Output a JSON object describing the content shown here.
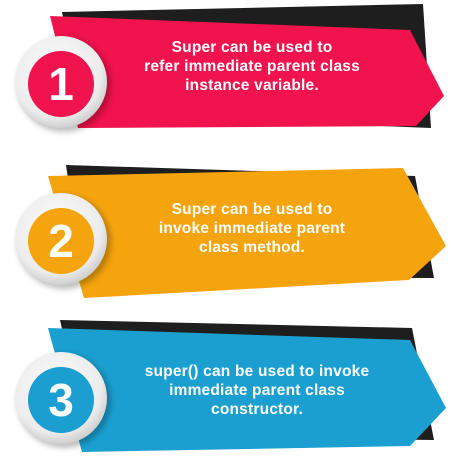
{
  "colors": {
    "banner_1": "#f0134d",
    "banner_2": "#f5a40d",
    "banner_3": "#1a9fd0",
    "shadow": "#1e1e1e",
    "ring": "#f1f1f1"
  },
  "items": [
    {
      "number": "1",
      "lines": [
        "Super can be used to",
        "refer immediate parent class",
        "instance variable."
      ]
    },
    {
      "number": "2",
      "lines": [
        "Super can be used to",
        "invoke immediate parent",
        "class method."
      ]
    },
    {
      "number": "3",
      "lines": [
        "super() can be used to invoke",
        "immediate parent class",
        "constructor."
      ]
    }
  ]
}
